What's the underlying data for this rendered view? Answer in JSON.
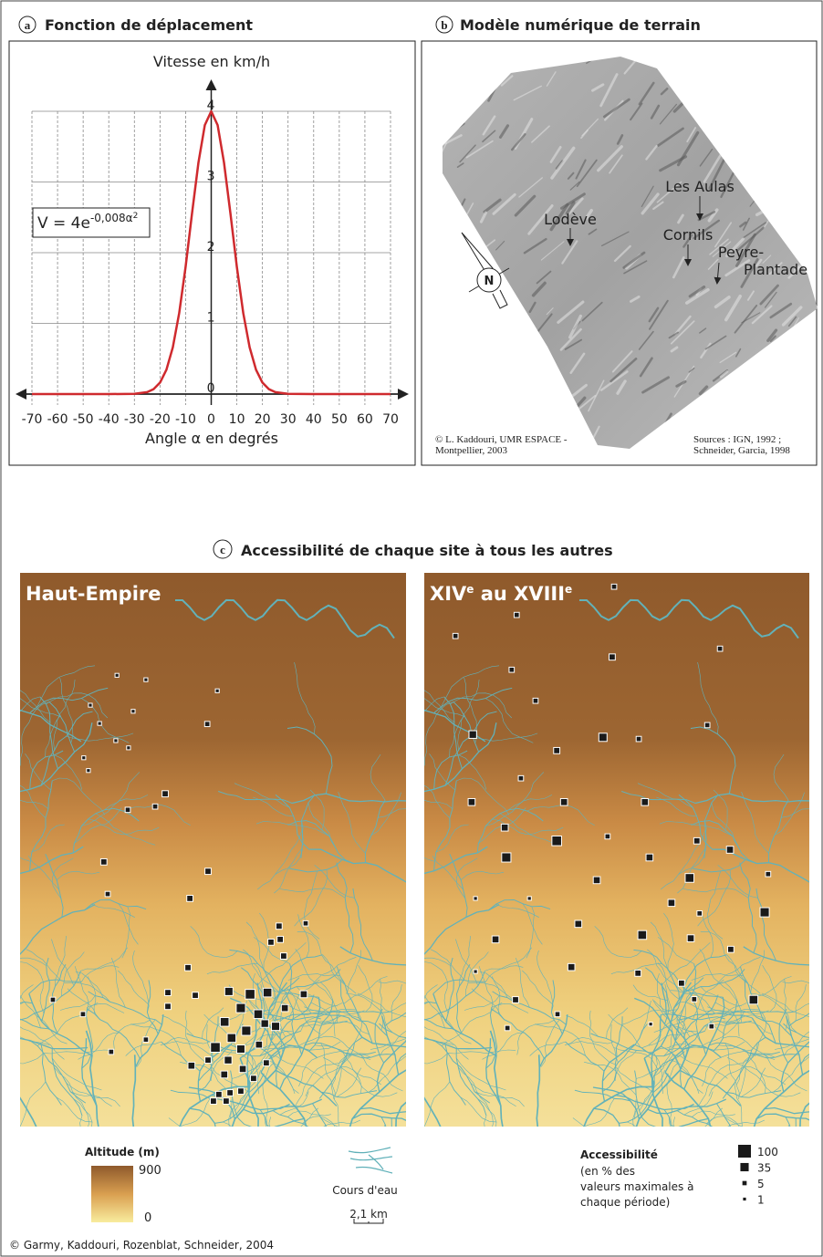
{
  "panel_a": {
    "letter": "a",
    "title": "Fonction de déplacement"
  },
  "chart_data": {
    "type": "line",
    "y_label": "Vitesse en km/h",
    "x_label": "Angle α en degrés",
    "formula": {
      "text": "V = 4e",
      "exponent": "-0,008α",
      "exponent_power": "2"
    },
    "x": [
      -70,
      -60,
      -50,
      -40,
      -30,
      -25,
      -22.5,
      -20,
      -17.5,
      -15,
      -12.5,
      -10,
      -7.5,
      -5,
      -2.5,
      0,
      2.5,
      5,
      7.5,
      10,
      12.5,
      15,
      17.5,
      20,
      22.5,
      25,
      30,
      40,
      50,
      60,
      70
    ],
    "values": [
      0,
      0,
      0,
      0,
      0.003,
      0.027,
      0.07,
      0.163,
      0.345,
      0.661,
      1.146,
      1.797,
      2.55,
      3.275,
      3.805,
      4,
      3.805,
      3.275,
      2.55,
      1.797,
      1.146,
      0.661,
      0.345,
      0.163,
      0.07,
      0.027,
      0.003,
      0,
      0,
      0,
      0
    ],
    "color": "#cf2a2e",
    "xlim": [
      -70,
      70
    ],
    "ylim": [
      0,
      4
    ],
    "xticks": [
      -70,
      -60,
      -50,
      -40,
      -30,
      -20,
      -10,
      0,
      10,
      20,
      30,
      40,
      50,
      60,
      70
    ],
    "yticks": [
      0,
      1,
      2,
      3,
      4
    ],
    "grid": true
  },
  "panel_b": {
    "letter": "b",
    "title": "Modèle numérique de terrain",
    "places": [
      {
        "label": [
          "Lodève"
        ]
      },
      {
        "label": [
          "Les Aulas"
        ]
      },
      {
        "label": [
          "Cornils"
        ]
      },
      {
        "label": [
          "Peyre-",
          "Plantade"
        ]
      }
    ],
    "north": "N",
    "credit": [
      "© L. Kaddouri, UMR ESPACE -",
      "Montpellier, 2003"
    ],
    "sources": [
      "Sources : IGN, 1992 ;",
      "Schneider, Garcia, 1998"
    ]
  },
  "panel_c": {
    "letter": "c",
    "title": "Accessibilité de chaque site à tous les autres",
    "maps": [
      {
        "label_parts": [
          "Haut-Empire"
        ],
        "sites": [
          [
            25.1,
            18.5,
            1
          ],
          [
            32.6,
            19.3,
            1
          ],
          [
            18.2,
            23.9,
            1
          ],
          [
            29.3,
            25.0,
            1
          ],
          [
            51.1,
            21.3,
            1
          ],
          [
            20.6,
            27.2,
            1
          ],
          [
            24.8,
            30.3,
            1
          ],
          [
            28.1,
            31.6,
            1
          ],
          [
            16.5,
            33.4,
            1
          ],
          [
            17.7,
            35.7,
            1
          ],
          [
            48.5,
            27.3,
            5
          ],
          [
            37.6,
            39.9,
            10
          ],
          [
            35.0,
            42.2,
            5
          ],
          [
            27.9,
            42.8,
            5
          ],
          [
            21.7,
            52.2,
            10
          ],
          [
            22.7,
            58.0,
            5
          ],
          [
            48.7,
            53.9,
            10
          ],
          [
            44.0,
            58.8,
            10
          ],
          [
            67.1,
            63.8,
            10
          ],
          [
            67.4,
            66.2,
            10
          ],
          [
            74.0,
            63.3,
            5
          ],
          [
            65.0,
            66.7,
            10
          ],
          [
            68.3,
            69.2,
            10
          ],
          [
            43.5,
            71.3,
            10
          ],
          [
            45.4,
            76.3,
            10
          ],
          [
            8.5,
            77.1,
            5
          ],
          [
            16.3,
            79.7,
            5
          ],
          [
            54.1,
            75.6,
            25
          ],
          [
            59.6,
            76.1,
            40
          ],
          [
            64.1,
            75.8,
            30
          ],
          [
            57.2,
            78.6,
            35
          ],
          [
            53.0,
            81.1,
            30
          ],
          [
            61.7,
            79.7,
            30
          ],
          [
            68.6,
            78.6,
            15
          ],
          [
            73.5,
            76.1,
            15
          ],
          [
            66.2,
            81.9,
            25
          ],
          [
            38.3,
            75.8,
            10
          ],
          [
            38.3,
            78.3,
            10
          ],
          [
            54.8,
            84.0,
            30
          ],
          [
            58.6,
            82.7,
            35
          ],
          [
            63.4,
            81.4,
            20
          ],
          [
            50.6,
            85.7,
            40
          ],
          [
            57.2,
            86.0,
            25
          ],
          [
            53.9,
            88.0,
            20
          ],
          [
            61.9,
            85.2,
            15
          ],
          [
            63.8,
            88.5,
            10
          ],
          [
            44.4,
            89.0,
            15
          ],
          [
            48.7,
            88.0,
            10
          ],
          [
            52.9,
            90.6,
            15
          ],
          [
            57.7,
            89.6,
            15
          ],
          [
            60.5,
            91.3,
            10
          ],
          [
            32.6,
            84.3,
            5
          ],
          [
            23.6,
            86.5,
            5
          ],
          [
            51.5,
            94.2,
            10
          ],
          [
            54.4,
            93.9,
            10
          ],
          [
            57.2,
            93.6,
            10
          ],
          [
            50.1,
            95.4,
            10
          ],
          [
            53.4,
            95.4,
            10
          ]
        ]
      },
      {
        "label_parts": [
          "XIV",
          "e",
          " au XVIII",
          "e"
        ],
        "sites": [
          [
            49.3,
            2.5,
            5
          ],
          [
            24.0,
            7.6,
            5
          ],
          [
            8.1,
            11.4,
            5
          ],
          [
            76.8,
            13.7,
            5
          ],
          [
            48.8,
            15.2,
            10
          ],
          [
            22.7,
            17.5,
            5
          ],
          [
            28.9,
            23.1,
            5
          ],
          [
            73.5,
            27.5,
            5
          ],
          [
            55.7,
            30.0,
            5
          ],
          [
            12.6,
            29.2,
            20
          ],
          [
            46.4,
            29.7,
            25
          ],
          [
            34.4,
            32.1,
            10
          ],
          [
            25.1,
            37.1,
            5
          ],
          [
            12.3,
            41.4,
            15
          ],
          [
            36.3,
            41.4,
            15
          ],
          [
            57.3,
            41.4,
            15
          ],
          [
            20.9,
            46.0,
            15
          ],
          [
            34.4,
            48.4,
            40
          ],
          [
            21.3,
            51.4,
            35
          ],
          [
            47.6,
            47.6,
            5
          ],
          [
            70.8,
            48.4,
            10
          ],
          [
            79.4,
            50.0,
            15
          ],
          [
            58.5,
            51.4,
            15
          ],
          [
            68.9,
            55.1,
            30
          ],
          [
            89.3,
            54.4,
            5
          ],
          [
            44.8,
            55.5,
            15
          ],
          [
            13.3,
            58.8,
            1
          ],
          [
            27.3,
            58.8,
            1
          ],
          [
            64.2,
            59.6,
            15
          ],
          [
            71.5,
            61.5,
            5
          ],
          [
            88.4,
            61.3,
            35
          ],
          [
            40.0,
            63.4,
            15
          ],
          [
            56.6,
            65.4,
            30
          ],
          [
            18.5,
            66.2,
            15
          ],
          [
            69.2,
            66.0,
            15
          ],
          [
            79.6,
            68.0,
            10
          ],
          [
            13.3,
            72.0,
            1
          ],
          [
            38.2,
            71.2,
            15
          ],
          [
            55.5,
            72.3,
            10
          ],
          [
            66.8,
            74.1,
            10
          ],
          [
            23.7,
            77.1,
            10
          ],
          [
            70.1,
            77.0,
            5
          ],
          [
            85.5,
            77.1,
            30
          ],
          [
            34.6,
            79.7,
            5
          ],
          [
            21.6,
            82.2,
            5
          ],
          [
            58.8,
            81.5,
            1
          ],
          [
            74.6,
            81.9,
            5
          ]
        ]
      }
    ],
    "altitude_legend": {
      "title": "Altitude (m)",
      "values": [
        900,
        0
      ]
    },
    "river_legend": {
      "label": "Cours d'eau",
      "scale": "2,1 km"
    },
    "accessibility_legend": {
      "title": "Accessibilité",
      "note": [
        "(en % des",
        "valeurs maximales à",
        "chaque période)"
      ],
      "values": [
        100,
        35,
        5,
        1
      ]
    }
  },
  "credit": "© Garmy, Kaddouri, Rozenblat, Schneider, 2004"
}
